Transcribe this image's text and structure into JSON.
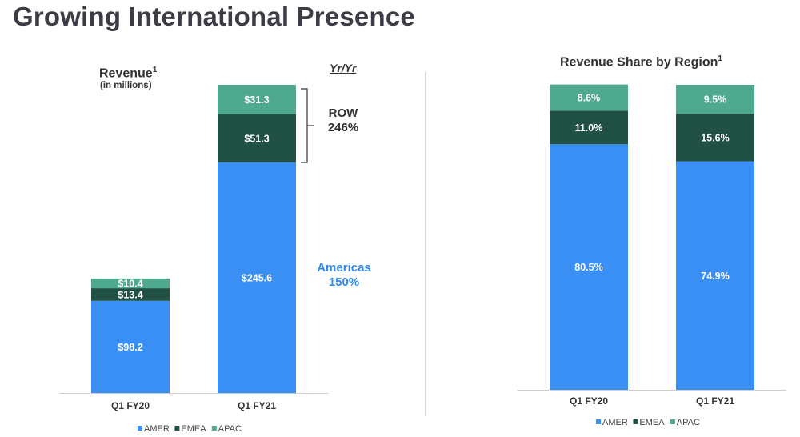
{
  "page": {
    "title": "Growing International Presence"
  },
  "colors": {
    "AMER": "#3a8ff5",
    "EMEA": "#215045",
    "APAC": "#4fa98f"
  },
  "annotations": {
    "revenue_title": "Revenue",
    "revenue_sup": "1",
    "revenue_subtitle": "(in millions)",
    "yryr": "Yr/Yr",
    "row_label": "ROW",
    "row_growth": "246%",
    "americas_label": "Americas",
    "americas_growth": "150%",
    "share_title": "Revenue Share by Region",
    "share_sup": "1"
  },
  "chart_data": [
    {
      "type": "bar",
      "stacked": true,
      "title": "Revenue",
      "subtitle": "(in millions)",
      "categories": [
        "Q1 FY20",
        "Q1 FY21"
      ],
      "series": [
        {
          "name": "AMER",
          "values": [
            98.2,
            245.6
          ],
          "labels": [
            "$98.2",
            "$245.6"
          ]
        },
        {
          "name": "EMEA",
          "values": [
            13.4,
            51.3
          ],
          "labels": [
            "$13.4",
            "$51.3"
          ]
        },
        {
          "name": "APAC",
          "values": [
            10.4,
            31.3
          ],
          "labels": [
            "$10.4",
            "$31.3"
          ]
        }
      ],
      "ylim": [
        0,
        328.2
      ],
      "grid": false,
      "legend": "bottom"
    },
    {
      "type": "bar",
      "stacked": true,
      "title": "Revenue Share by Region",
      "categories": [
        "Q1 FY20",
        "Q1 FY21"
      ],
      "series": [
        {
          "name": "AMER",
          "values": [
            80.5,
            74.9
          ],
          "labels": [
            "80.5%",
            "74.9%"
          ]
        },
        {
          "name": "EMEA",
          "values": [
            11.0,
            15.6
          ],
          "labels": [
            "11.0%",
            "15.6%"
          ]
        },
        {
          "name": "APAC",
          "values": [
            8.6,
            9.5
          ],
          "labels": [
            "8.6%",
            "9.5%"
          ]
        }
      ],
      "ylim": [
        0,
        100
      ],
      "grid": false,
      "legend": "bottom"
    }
  ]
}
